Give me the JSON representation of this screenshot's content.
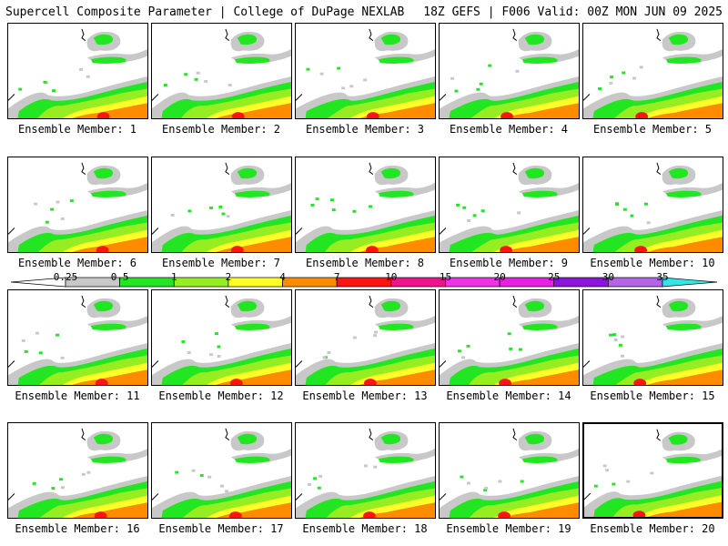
{
  "header": {
    "left": "Supercell Composite Parameter | College of DuPage NEXLAB",
    "right": "18Z GEFS | F006 Valid: 00Z MON JUN 09 2025"
  },
  "panels": [
    {
      "label": "Ensemble Member: 1"
    },
    {
      "label": "Ensemble Member: 2"
    },
    {
      "label": "Ensemble Member: 3"
    },
    {
      "label": "Ensemble Member: 4"
    },
    {
      "label": "Ensemble Member: 5"
    },
    {
      "label": "Ensemble Member: 6"
    },
    {
      "label": "Ensemble Member: 7"
    },
    {
      "label": "Ensemble Member: 8"
    },
    {
      "label": "Ensemble Member: 9"
    },
    {
      "label": "Ensemble Member: 10"
    },
    {
      "label": "Ensemble Member: 11"
    },
    {
      "label": "Ensemble Member: 12"
    },
    {
      "label": "Ensemble Member: 13"
    },
    {
      "label": "Ensemble Member: 14"
    },
    {
      "label": "Ensemble Member: 15"
    },
    {
      "label": "Ensemble Member: 16"
    },
    {
      "label": "Ensemble Member: 17"
    },
    {
      "label": "Ensemble Member: 18"
    },
    {
      "label": "Ensemble Member: 19"
    },
    {
      "label": "Ensemble Member: 20",
      "selected": true
    }
  ],
  "colorbar": {
    "ticks": [
      "0.25",
      "0.5",
      "1",
      "2",
      "4",
      "7",
      "10",
      "15",
      "20",
      "25",
      "30",
      "35"
    ],
    "colors": [
      "#ffffff",
      "#c8c8c8",
      "#22e622",
      "#96ee22",
      "#ffff28",
      "#ff8c00",
      "#ff1414",
      "#f0148c",
      "#f032e6",
      "#e61ee6",
      "#8c14dc",
      "#b464e6",
      "#32e6e6"
    ]
  }
}
